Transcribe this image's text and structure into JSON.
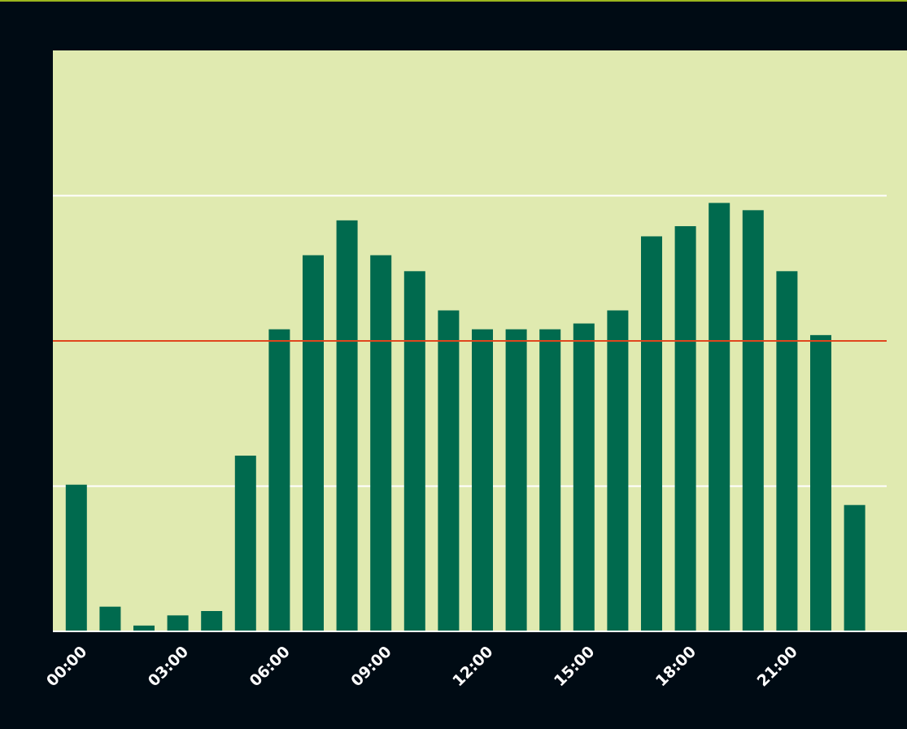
{
  "chart_data": {
    "type": "bar",
    "categories": [
      "00:00",
      null,
      null,
      "03:00",
      null,
      null,
      "06:00",
      null,
      null,
      "09:00",
      null,
      null,
      "12:00",
      null,
      null,
      "15:00",
      null,
      null,
      "18:00",
      null,
      null,
      "21:00",
      null,
      null
    ],
    "values": [
      1.01,
      0.17,
      0.04,
      0.11,
      0.14,
      1.21,
      2.08,
      2.59,
      2.83,
      2.59,
      2.48,
      2.21,
      2.08,
      2.08,
      2.08,
      2.12,
      2.21,
      2.72,
      2.79,
      2.95,
      2.9,
      2.48,
      2.04,
      0.87
    ],
    "color": "#006a4e",
    "reference_line": 2,
    "reference_color": "#e0461e",
    "ylim": [
      0,
      4
    ],
    "yticks": [
      1,
      3
    ],
    "grid": true
  }
}
